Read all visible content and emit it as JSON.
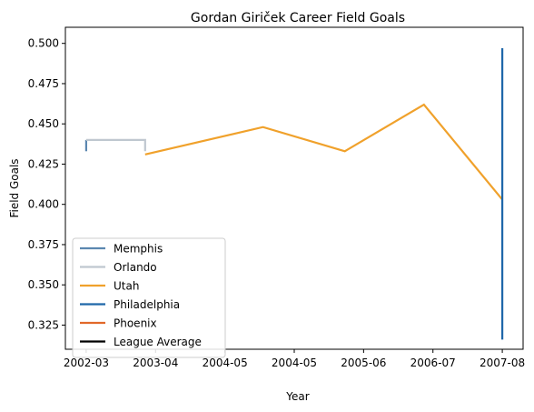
{
  "chart_data": {
    "type": "line",
    "title": "Gordan Giriček Career Field Goals",
    "xlabel": "Year",
    "ylabel": "Field Goals",
    "categories": [
      "2002-03",
      "2003-04",
      "2004-05",
      "2004-05",
      "2005-06",
      "2006-07",
      "2007-08"
    ],
    "x_tick_positions": [
      0,
      1,
      2,
      3,
      4,
      5,
      6
    ],
    "ylim": [
      0.31,
      0.51
    ],
    "yticks": [
      0.325,
      0.35,
      0.375,
      0.4,
      0.425,
      0.45,
      0.475,
      0.5
    ],
    "ytick_labels": [
      "0.325",
      "0.350",
      "0.375",
      "0.400",
      "0.425",
      "0.450",
      "0.475",
      "0.500"
    ],
    "xlim": [
      -0.3,
      6.3
    ],
    "grid": false,
    "legend_position": "lower-left",
    "series": [
      {
        "name": "Memphis",
        "color": "#5b87b0",
        "points": [
          [
            0,
            0.433
          ],
          [
            0,
            0.44
          ]
        ]
      },
      {
        "name": "Orlando",
        "color": "#bfc7cf",
        "points": [
          [
            0,
            0.44
          ],
          [
            0.85,
            0.44
          ],
          [
            0.85,
            0.433
          ]
        ]
      },
      {
        "name": "Utah",
        "color": "#f0a12b",
        "points": [
          [
            0.85,
            0.431
          ],
          [
            2.55,
            0.448
          ],
          [
            3.73,
            0.433
          ],
          [
            4.87,
            0.462
          ],
          [
            6.0,
            0.403
          ]
        ]
      },
      {
        "name": "Philadelphia",
        "color": "#1f67a9",
        "points": [
          [
            6.0,
            0.316
          ],
          [
            6.0,
            0.497
          ]
        ]
      },
      {
        "name": "Phoenix",
        "color": "#e1692a",
        "points": []
      },
      {
        "name": "League Average",
        "color": "#000000",
        "points": []
      }
    ]
  }
}
